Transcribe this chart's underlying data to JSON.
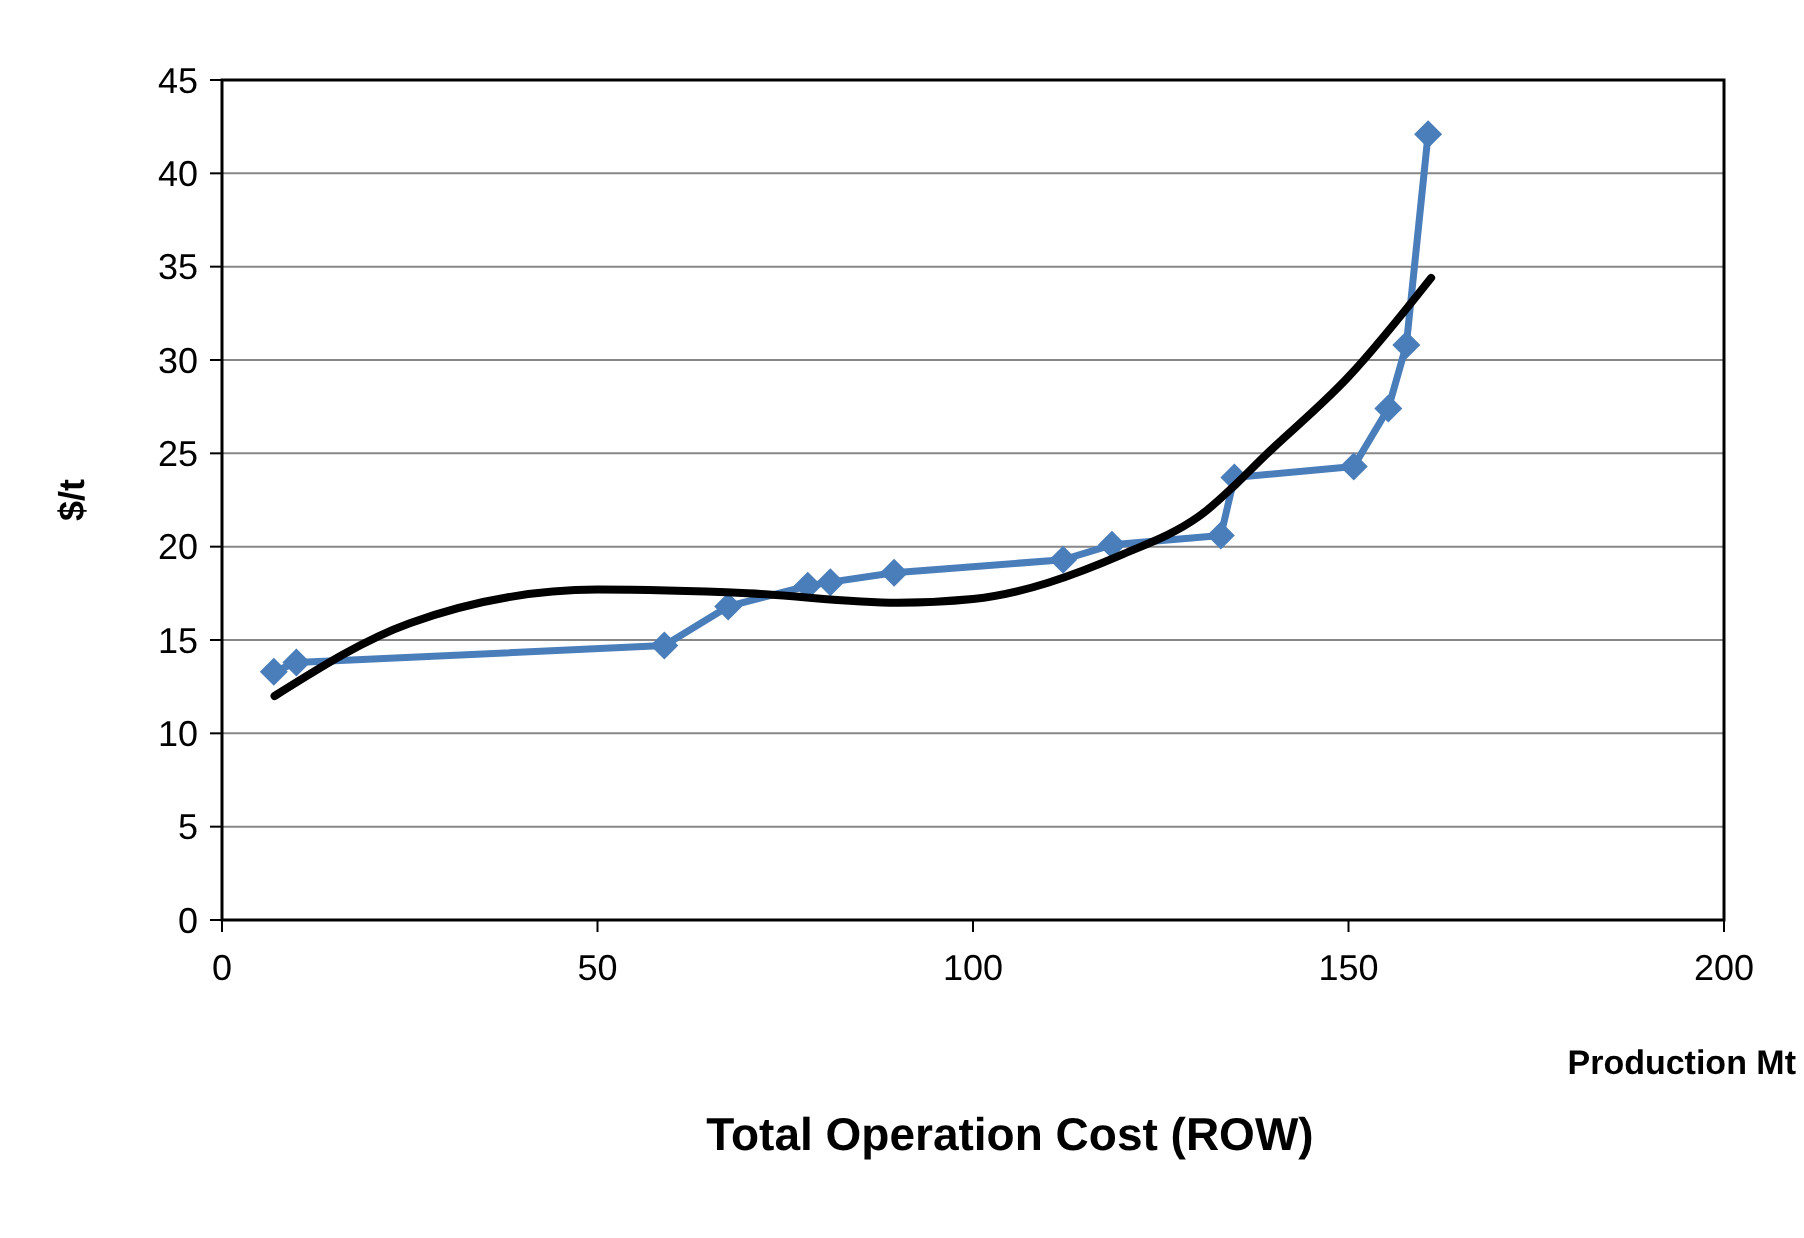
{
  "chart_data": {
    "type": "line",
    "title": "Total Operation Cost (ROW)",
    "xlabel": "Production Mt",
    "ylabel": "$/t",
    "xlim": [
      0,
      200
    ],
    "xticks": [
      0,
      50,
      100,
      150,
      200
    ],
    "ylim": [
      0,
      45
    ],
    "yticks": [
      0,
      5,
      10,
      15,
      20,
      25,
      30,
      35,
      40,
      45
    ],
    "grid": "y",
    "series": [
      {
        "color": "#4a7ebb",
        "marker": "diamond",
        "x": [
          6.9,
          9.9,
          58.9,
          67.4,
          78,
          81,
          89.5,
          112,
          118.5,
          133,
          134.8,
          150.7,
          155.3,
          157.7,
          160.6
        ],
        "values": [
          13.3,
          13.8,
          14.7,
          16.8,
          17.9,
          18.1,
          18.6,
          19.3,
          20.1,
          20.6,
          23.7,
          24.3,
          27.4,
          30.8,
          42.1
        ]
      },
      {
        "type": "line",
        "color": "#000000",
        "marker": "none",
        "x": [
          7,
          25,
          50,
          70,
          90,
          100,
          120,
          130,
          140,
          150,
          161
        ],
        "values": [
          12,
          15.9,
          17.7,
          17.5,
          17,
          17.2,
          19.6,
          21.6,
          25.3,
          29.1,
          34.4
        ]
      }
    ]
  }
}
